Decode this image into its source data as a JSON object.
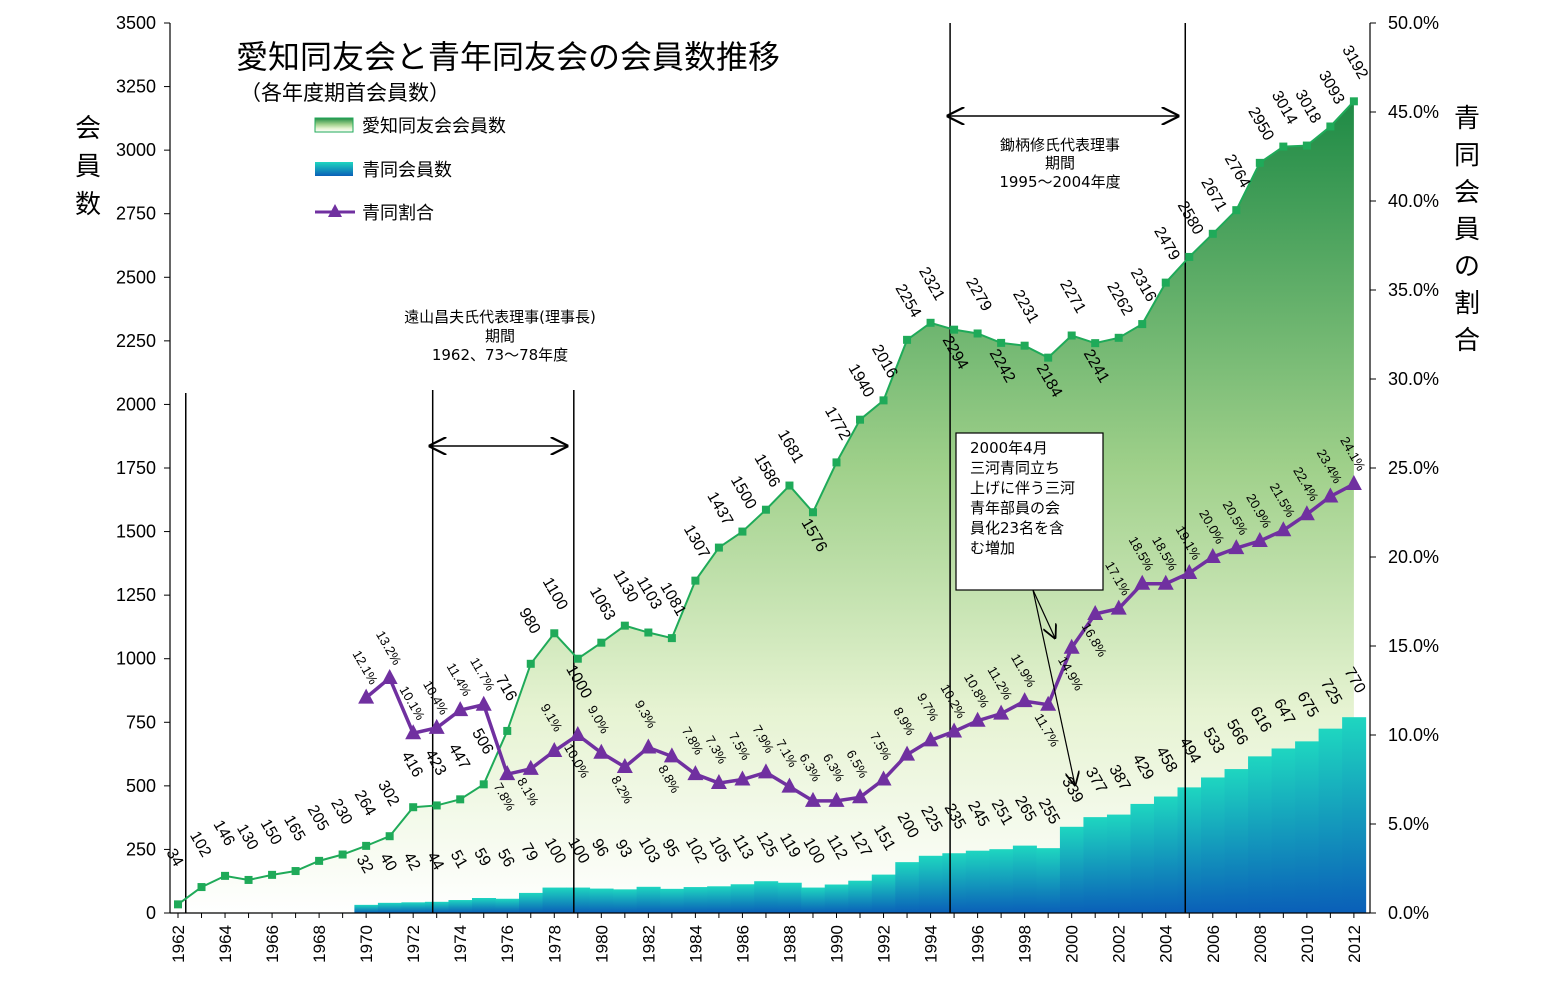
{
  "chart_data": {
    "type": "area",
    "title": "愛知同友会と青年同友会の会員数推移",
    "subtitle": "（各年度期首会員数）",
    "ylabel_left": "会員数",
    "ylabel_right": "青同会員の割合",
    "ylim_left": [
      0,
      3500
    ],
    "ylim_right": [
      0,
      50
    ],
    "y_ticks_left": [
      "0",
      "250",
      "500",
      "750",
      "1000",
      "1250",
      "1500",
      "1750",
      "2000",
      "2250",
      "2500",
      "2750",
      "3000",
      "3250",
      "3500"
    ],
    "y_ticks_right": [
      "0.0%",
      "5.0%",
      "10.0%",
      "15.0%",
      "20.0%",
      "25.0%",
      "30.0%",
      "35.0%",
      "40.0%",
      "45.0%",
      "50.0%"
    ],
    "x_ticks": [
      "1962",
      "1964",
      "1966",
      "1968",
      "1970",
      "1972",
      "1974",
      "1976",
      "1978",
      "1980",
      "1982",
      "1984",
      "1986",
      "1988",
      "1990",
      "1992",
      "1994",
      "1996",
      "1998",
      "2000",
      "2002",
      "2004",
      "2006",
      "2008",
      "2010",
      "2012"
    ],
    "legend": [
      "愛知同友会会員数",
      "青同会員数",
      "青同割合"
    ],
    "legend_position": "top-left",
    "grid": false,
    "series": [
      {
        "name": "愛知同友会会員数",
        "kind": "area-line",
        "color": "#1faa59",
        "x": [
          1962,
          1963,
          1964,
          1965,
          1966,
          1967,
          1968,
          1969,
          1970,
          1971,
          1972,
          1973,
          1974,
          1975,
          1976,
          1977,
          1978,
          1979,
          1980,
          1981,
          1982,
          1983,
          1984,
          1985,
          1986,
          1987,
          1988,
          1989,
          1990,
          1991,
          1992,
          1993,
          1994,
          1995,
          1996,
          1997,
          1998,
          1999,
          2000,
          2001,
          2002,
          2003,
          2004,
          2005,
          2006,
          2007,
          2008,
          2009,
          2010,
          2011,
          2012
        ],
        "values": [
          34,
          102,
          146,
          130,
          150,
          165,
          205,
          230,
          264,
          302,
          416,
          423,
          447,
          506,
          716,
          980,
          1100,
          1000,
          1063,
          1130,
          1103,
          1081,
          1307,
          1437,
          1500,
          1586,
          1681,
          1576,
          1772,
          1940,
          2016,
          2254,
          2321,
          2294,
          2279,
          2242,
          2231,
          2184,
          2271,
          2241,
          2262,
          2316,
          2479,
          2580,
          2671,
          2764,
          2950,
          3014,
          3018,
          3093,
          3192
        ]
      },
      {
        "name": "青同会員数",
        "kind": "bar",
        "color": "#16b8c8",
        "x": [
          1970,
          1971,
          1972,
          1973,
          1974,
          1975,
          1976,
          1977,
          1978,
          1979,
          1980,
          1981,
          1982,
          1983,
          1984,
          1985,
          1986,
          1987,
          1988,
          1989,
          1990,
          1991,
          1992,
          1993,
          1994,
          1995,
          1996,
          1997,
          1998,
          1999,
          2000,
          2001,
          2002,
          2003,
          2004,
          2005,
          2006,
          2007,
          2008,
          2009,
          2010,
          2011,
          2012
        ],
        "values": [
          32,
          40,
          42,
          44,
          51,
          59,
          56,
          79,
          100,
          100,
          96,
          93,
          103,
          95,
          102,
          105,
          113,
          125,
          119,
          100,
          112,
          127,
          151,
          200,
          225,
          235,
          245,
          251,
          265,
          255,
          339,
          377,
          387,
          429,
          458,
          494,
          533,
          566,
          616,
          647,
          675,
          725,
          770
        ]
      },
      {
        "name": "青同割合",
        "kind": "line",
        "color": "#7030a0",
        "x": [
          1970,
          1971,
          1972,
          1973,
          1974,
          1975,
          1976,
          1977,
          1978,
          1979,
          1980,
          1981,
          1982,
          1983,
          1984,
          1985,
          1986,
          1987,
          1988,
          1989,
          1990,
          1991,
          1992,
          1993,
          1994,
          1995,
          1996,
          1997,
          1998,
          1999,
          2000,
          2001,
          2002,
          2003,
          2004,
          2005,
          2006,
          2007,
          2008,
          2009,
          2010,
          2011,
          2012
        ],
        "values": [
          12.1,
          13.2,
          10.1,
          10.4,
          11.4,
          11.7,
          7.8,
          8.1,
          9.1,
          10.0,
          9.0,
          8.2,
          9.3,
          8.8,
          7.8,
          7.3,
          7.5,
          7.9,
          7.1,
          6.3,
          6.3,
          6.5,
          7.5,
          8.9,
          9.7,
          10.2,
          10.8,
          11.2,
          11.9,
          11.7,
          14.9,
          16.8,
          17.1,
          18.5,
          18.5,
          19.1,
          20.0,
          20.5,
          20.9,
          21.5,
          22.4,
          23.4,
          24.1
        ],
        "labels": [
          "12.1%",
          "13.2%",
          "10.1%",
          "10.4%",
          "11.4%",
          "11.7%",
          "7.8%",
          "8.1%",
          "9.1%",
          "10.0%",
          "9.0%",
          "8.2%",
          "9.3%",
          "8.8%",
          "7.8%",
          "7.3%",
          "7.5%",
          "7.9%",
          "7.1%",
          "6.3%",
          "6.3%",
          "6.5%",
          "7.5%",
          "8.9%",
          "9.7%",
          "10.2%",
          "10.8%",
          "11.2%",
          "11.9%",
          "11.7%",
          "14.9%",
          "16.8%",
          "17.1%",
          "18.5%",
          "18.5%",
          "19.1%",
          "20.0%",
          "20.5%",
          "20.9%",
          "21.5%",
          "22.4%",
          "23.4%",
          "24.1%"
        ]
      }
    ],
    "annotations": {
      "toyama": {
        "lines": [
          "遠山昌夫氏代表理事(理事長)",
          "期間",
          "1962、73～78年度"
        ]
      },
      "tsuka": {
        "lines": [
          "鋤柄修氏代表理事",
          "期間",
          "1995～2004年度"
        ]
      },
      "mikawa_note": {
        "lines": [
          "2000年4月",
          "三河青同立ち",
          "上げに伴う三河",
          "青年部員の会",
          "員化23名を含",
          "む増加"
        ]
      }
    },
    "colors": {
      "area_top": "#1e8a45",
      "area_bottom": "#ffffff",
      "bar_top": "#1ed6c0",
      "bar_bottom": "#0a5fb8",
      "total_line": "#1faa59",
      "ratio_line": "#7030a0"
    }
  }
}
